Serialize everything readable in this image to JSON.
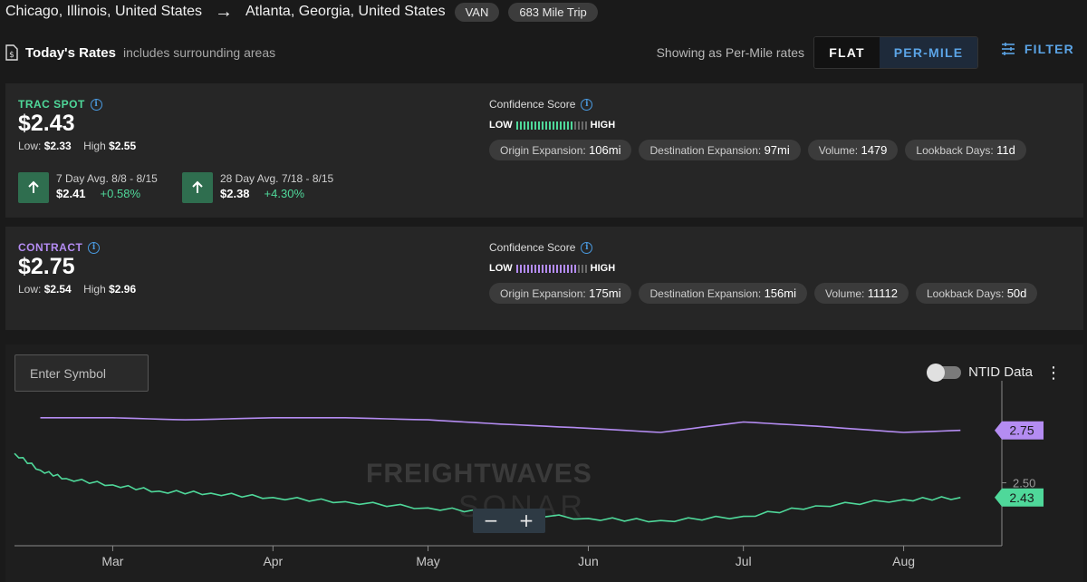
{
  "route": {
    "origin": "Chicago, Illinois, United States",
    "destination": "Atlanta, Georgia, United States",
    "equipment": "VAN",
    "trip": "683 Mile Trip"
  },
  "rates_header": {
    "title": "Today's Rates",
    "subtitle": "includes surrounding areas",
    "showing": "Showing as Per-Mile rates",
    "flat_label": "FLAT",
    "permile_label": "PER-MILE",
    "filter_label": "FILTER"
  },
  "spot": {
    "label": "TRAC SPOT",
    "rate": "$2.43",
    "low_label": "Low:",
    "low": "$2.33",
    "high_label": "High",
    "high": "$2.55",
    "avg7_title": "7 Day Avg. 8/8 - 8/15",
    "avg7_value": "$2.41",
    "avg7_change": "+0.58%",
    "avg28_title": "28 Day Avg. 7/18 - 8/15",
    "avg28_value": "$2.38",
    "avg28_change": "+4.30%",
    "confidence_title": "Confidence Score",
    "conf_low": "LOW",
    "conf_high": "HIGH",
    "conf_filled": 16,
    "conf_total": 20,
    "origin_exp_label": "Origin Expansion:",
    "origin_exp": "106mi",
    "dest_exp_label": "Destination Expansion:",
    "dest_exp": "97mi",
    "volume_label": "Volume:",
    "volume": "1479",
    "lookback_label": "Lookback Days:",
    "lookback": "11d"
  },
  "contract": {
    "label": "CONTRACT",
    "rate": "$2.75",
    "low_label": "Low:",
    "low": "$2.54",
    "high_label": "High",
    "high": "$2.96",
    "confidence_title": "Confidence Score",
    "conf_low": "LOW",
    "conf_high": "HIGH",
    "conf_filled": 17,
    "conf_total": 20,
    "origin_exp_label": "Origin Expansion:",
    "origin_exp": "175mi",
    "dest_exp_label": "Destination Expansion:",
    "dest_exp": "156mi",
    "volume_label": "Volume:",
    "volume": "11112",
    "lookback_label": "Lookback Days:",
    "lookback": "50d"
  },
  "chart_panel": {
    "symbol_placeholder": "Enter Symbol",
    "ntid_label": "NTID Data",
    "watermark_1": "FREIGHTWAVES",
    "watermark_2": "SONAR",
    "zoom_out": "−",
    "zoom_in": "+"
  },
  "colors": {
    "spot": "#4fd89a",
    "contract": "#b48cf2",
    "accent": "#5ba4e6"
  },
  "chart_data": {
    "type": "line",
    "x_tick_labels": [
      "Mar",
      "Apr",
      "May",
      "Jun",
      "Jul",
      "Aug"
    ],
    "y_tick_labels": [
      "2.50"
    ],
    "ylim": [
      2.2,
      2.9
    ],
    "series": [
      {
        "key": "contract",
        "last_label": "2.75",
        "x": [
          "Feb 15",
          "Mar 1",
          "Mar 15",
          "Apr 1",
          "Apr 15",
          "May 1",
          "May 15",
          "Jun 1",
          "Jun 15",
          "Jul 1",
          "Jul 15",
          "Aug 1",
          "Aug 12"
        ],
        "values": [
          2.81,
          2.81,
          2.8,
          2.81,
          2.81,
          2.8,
          2.78,
          2.76,
          2.74,
          2.79,
          2.77,
          2.74,
          2.75
        ]
      },
      {
        "key": "spot",
        "last_label": "2.43",
        "x": [
          "Feb 10",
          "Feb 15",
          "Feb 20",
          "Mar 1",
          "Mar 10",
          "Mar 20",
          "Apr 1",
          "Apr 15",
          "May 1",
          "May 15",
          "Jun 1",
          "Jun 15",
          "Jul 1",
          "Jul 15",
          "Aug 1",
          "Aug 12"
        ],
        "values": [
          2.64,
          2.56,
          2.52,
          2.49,
          2.46,
          2.45,
          2.43,
          2.41,
          2.38,
          2.36,
          2.33,
          2.32,
          2.34,
          2.39,
          2.42,
          2.43
        ]
      }
    ]
  }
}
